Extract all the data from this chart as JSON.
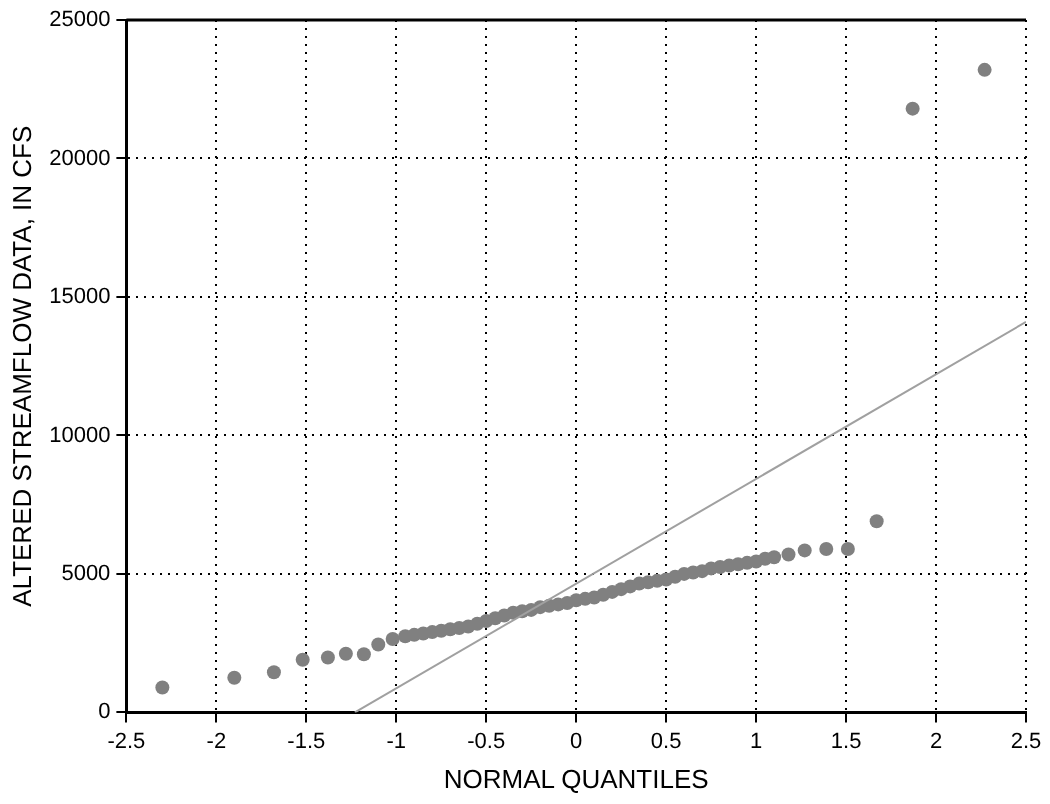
{
  "chart_data": {
    "type": "scatter",
    "xlabel": "NORMAL QUANTILES",
    "ylabel": "ALTERED STREAMFLOW DATA, IN CFS",
    "xlim": [
      -2.5,
      2.5
    ],
    "xticks": [
      -2.5,
      -2,
      -1.5,
      -1,
      -0.5,
      0,
      0.5,
      1,
      1.5,
      2,
      2.5
    ],
    "ylim": [
      0,
      25000
    ],
    "yticks": [
      0,
      5000,
      10000,
      15000,
      20000,
      25000
    ],
    "grid": true,
    "marker": "circle",
    "series": [
      {
        "color": "#808080",
        "x": [
          -2.3,
          -1.9,
          -1.68,
          -1.52,
          -1.38,
          -1.28,
          -1.18,
          -1.1,
          -1.02,
          -0.95,
          -0.9,
          -0.85,
          -0.8,
          -0.75,
          -0.7,
          -0.65,
          -0.6,
          -0.55,
          -0.5,
          -0.45,
          -0.4,
          -0.35,
          -0.3,
          -0.25,
          -0.2,
          -0.15,
          -0.1,
          -0.05,
          0,
          0.05,
          0.1,
          0.15,
          0.2,
          0.25,
          0.3,
          0.35,
          0.4,
          0.45,
          0.5,
          0.55,
          0.6,
          0.65,
          0.7,
          0.75,
          0.8,
          0.85,
          0.9,
          0.95,
          1,
          1.05,
          1.1,
          1.18,
          1.27,
          1.39,
          1.51,
          1.67,
          1.87,
          2.27
        ],
        "values": [
          900,
          1250,
          1450,
          1900,
          1980,
          2120,
          2100,
          2450,
          2650,
          2750,
          2800,
          2850,
          2900,
          2950,
          3000,
          3050,
          3100,
          3200,
          3300,
          3400,
          3500,
          3600,
          3650,
          3700,
          3800,
          3850,
          3900,
          3950,
          4050,
          4100,
          4150,
          4250,
          4350,
          4450,
          4550,
          4650,
          4700,
          4750,
          4800,
          4900,
          5000,
          5050,
          5100,
          5200,
          5250,
          5300,
          5350,
          5400,
          5450,
          5550,
          5600,
          5700,
          5850,
          5900,
          5900,
          6900,
          21800,
          23200
        ]
      },
      {
        "type": "line",
        "color": "#a0a0a0",
        "line_style": "solid",
        "marker": "none",
        "x": [
          -1.23,
          2.5
        ],
        "values": [
          0,
          14100
        ]
      }
    ]
  }
}
